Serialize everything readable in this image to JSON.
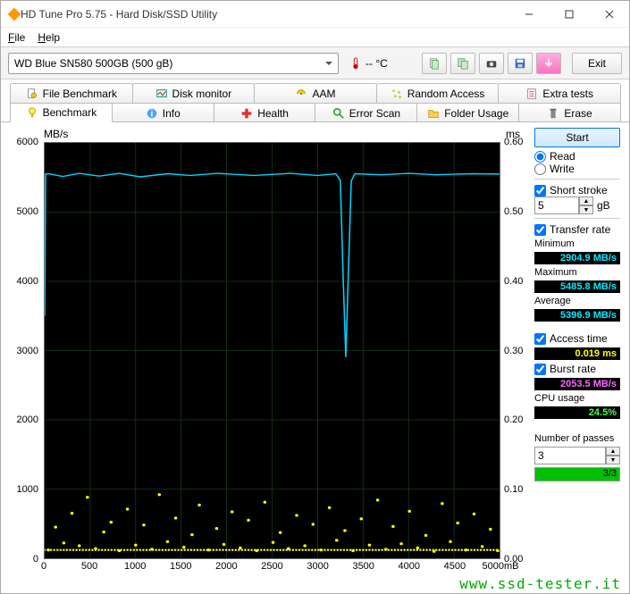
{
  "window": {
    "title": "HD Tune Pro 5.75 - Hard Disk/SSD Utility"
  },
  "menu": {
    "file": "File",
    "help": "Help"
  },
  "toolbar": {
    "drive": "WD Blue SN580 500GB (500 gB)",
    "temp": "-- °C",
    "exit": "Exit"
  },
  "tabs_top": [
    {
      "k": "file-benchmark",
      "label": "File Benchmark"
    },
    {
      "k": "disk-monitor",
      "label": "Disk monitor"
    },
    {
      "k": "aam",
      "label": "AAM"
    },
    {
      "k": "random-access",
      "label": "Random Access"
    },
    {
      "k": "extra-tests",
      "label": "Extra tests"
    }
  ],
  "tabs_bottom": [
    {
      "k": "benchmark",
      "label": "Benchmark",
      "active": true
    },
    {
      "k": "info",
      "label": "Info"
    },
    {
      "k": "health",
      "label": "Health"
    },
    {
      "k": "error-scan",
      "label": "Error Scan"
    },
    {
      "k": "folder-usage",
      "label": "Folder Usage"
    },
    {
      "k": "erase",
      "label": "Erase"
    }
  ],
  "chart": {
    "ylabel_left": "MB/s",
    "ylabel_right": "ms",
    "xlabel_right": "mB",
    "y_left": {
      "min": 0,
      "max": 6000,
      "step": 1000,
      "ticks": [
        "0",
        "1000",
        "2000",
        "3000",
        "4000",
        "5000",
        "6000"
      ]
    },
    "y_right": {
      "min": 0,
      "max": 0.6,
      "ticks": [
        "0.00",
        "0.10",
        "0.20",
        "0.30",
        "0.40",
        "0.50",
        "0.60"
      ]
    },
    "x": {
      "min": 0,
      "max": 5000,
      "ticks": [
        "0",
        "500",
        "1000",
        "1500",
        "2000",
        "2500",
        "3000",
        "3500",
        "4000",
        "4500",
        "5000"
      ]
    },
    "line_color": "#00d4ff",
    "scatter_color": "#ffff00",
    "bg": "#000000",
    "transfer_series": [
      [
        0,
        3500
      ],
      [
        10,
        5550
      ],
      [
        40,
        5555
      ],
      [
        200,
        5515
      ],
      [
        380,
        5560
      ],
      [
        600,
        5520
      ],
      [
        820,
        5560
      ],
      [
        1050,
        5510
      ],
      [
        1350,
        5555
      ],
      [
        1600,
        5530
      ],
      [
        1900,
        5560
      ],
      [
        2300,
        5530
      ],
      [
        2700,
        5560
      ],
      [
        3000,
        5530
      ],
      [
        3200,
        5555
      ],
      [
        3250,
        5460
      ],
      [
        3280,
        4100
      ],
      [
        3310,
        2905
      ],
      [
        3340,
        4200
      ],
      [
        3370,
        5450
      ],
      [
        3410,
        5555
      ],
      [
        3700,
        5540
      ],
      [
        4000,
        5560
      ],
      [
        4300,
        5540
      ],
      [
        4700,
        5555
      ],
      [
        5000,
        5550
      ]
    ],
    "access_scatter": [
      [
        40,
        0.012
      ],
      [
        120,
        0.045
      ],
      [
        210,
        0.022
      ],
      [
        300,
        0.065
      ],
      [
        380,
        0.018
      ],
      [
        470,
        0.088
      ],
      [
        560,
        0.014
      ],
      [
        650,
        0.038
      ],
      [
        730,
        0.052
      ],
      [
        820,
        0.011
      ],
      [
        910,
        0.071
      ],
      [
        1000,
        0.019
      ],
      [
        1090,
        0.048
      ],
      [
        1180,
        0.013
      ],
      [
        1260,
        0.092
      ],
      [
        1350,
        0.024
      ],
      [
        1440,
        0.058
      ],
      [
        1530,
        0.016
      ],
      [
        1620,
        0.034
      ],
      [
        1700,
        0.077
      ],
      [
        1800,
        0.012
      ],
      [
        1890,
        0.043
      ],
      [
        1970,
        0.02
      ],
      [
        2060,
        0.067
      ],
      [
        2150,
        0.015
      ],
      [
        2240,
        0.055
      ],
      [
        2330,
        0.011
      ],
      [
        2420,
        0.081
      ],
      [
        2510,
        0.023
      ],
      [
        2590,
        0.037
      ],
      [
        2680,
        0.014
      ],
      [
        2770,
        0.062
      ],
      [
        2860,
        0.018
      ],
      [
        2950,
        0.049
      ],
      [
        3040,
        0.012
      ],
      [
        3130,
        0.073
      ],
      [
        3210,
        0.026
      ],
      [
        3300,
        0.04
      ],
      [
        3390,
        0.011
      ],
      [
        3480,
        0.057
      ],
      [
        3570,
        0.019
      ],
      [
        3660,
        0.084
      ],
      [
        3750,
        0.013
      ],
      [
        3830,
        0.046
      ],
      [
        3920,
        0.021
      ],
      [
        4010,
        0.068
      ],
      [
        4100,
        0.015
      ],
      [
        4190,
        0.033
      ],
      [
        4280,
        0.01
      ],
      [
        4370,
        0.079
      ],
      [
        4460,
        0.024
      ],
      [
        4540,
        0.051
      ],
      [
        4630,
        0.012
      ],
      [
        4720,
        0.064
      ],
      [
        4810,
        0.017
      ],
      [
        4900,
        0.042
      ],
      [
        4980,
        0.011
      ]
    ]
  },
  "side": {
    "start": "Start",
    "read": "Read",
    "write": "Write",
    "short_stroke": "Short stroke",
    "short_stroke_val": "5",
    "short_stroke_unit": "gB",
    "transfer_rate": "Transfer rate",
    "minimum": "Minimum",
    "minimum_val": "2904.9 MB/s",
    "maximum": "Maximum",
    "maximum_val": "5485.8 MB/s",
    "average": "Average",
    "average_val": "5396.9 MB/s",
    "access_time": "Access time",
    "access_val": "0.019 ms",
    "burst_rate": "Burst rate",
    "burst_val": "2053.5 MB/s",
    "cpu_usage": "CPU usage",
    "cpu_val": "24.5%",
    "passes": "Number of passes",
    "passes_val": "3",
    "passes_progress": "3/3",
    "progress_pct": 100
  },
  "watermark": "www.ssd-tester.it"
}
